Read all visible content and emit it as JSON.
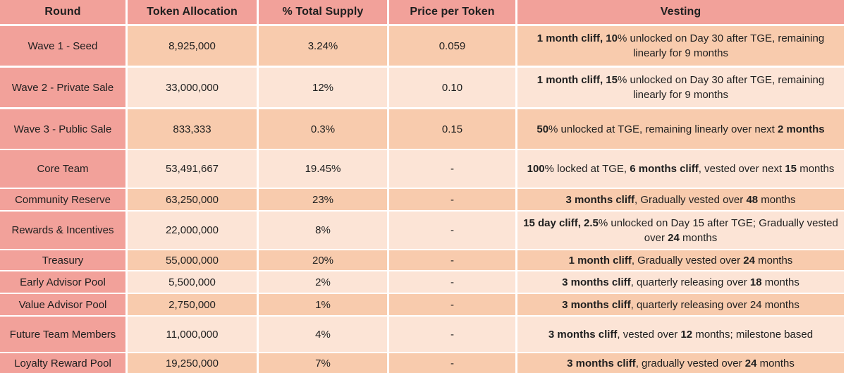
{
  "colors": {
    "header_and_round_column": "#F2A19A",
    "row_band_dark": "#F8CBAD",
    "row_band_light": "#FCE4D6",
    "grid_lines": "#FFFFFF",
    "text": "#1F1F1F"
  },
  "chart_data": {
    "type": "table",
    "columns": [
      "Round",
      "Token Allocation",
      "% Total Supply",
      "Price per Token",
      "Vesting"
    ],
    "rows": [
      {
        "round": "Wave 1 - Seed",
        "token_allocation": "8,925,000",
        "pct_total_supply": "3.24%",
        "price_per_token": "0.059",
        "vesting": "1 month cliff, 10% unlocked on Day 30 after TGE, remaining linearly for 9 months",
        "vesting_segments": [
          {
            "text": "1 month cliff, 10",
            "bold": true
          },
          {
            "text": "% unlocked on Day 30 after TGE, remaining linearly for 9 months",
            "bold": false
          }
        ]
      },
      {
        "round": "Wave 2 - Private Sale",
        "token_allocation": "33,000,000",
        "pct_total_supply": "12%",
        "price_per_token": "0.10",
        "vesting": "1 month cliff, 15% unlocked on Day 30 after TGE, remaining linearly for 9 months",
        "vesting_segments": [
          {
            "text": "1 month cliff, 15",
            "bold": true
          },
          {
            "text": "% unlocked on Day 30 after TGE, remaining linearly for 9 months",
            "bold": false
          }
        ]
      },
      {
        "round": "Wave 3 - Public Sale",
        "token_allocation": "833,333",
        "pct_total_supply": "0.3%",
        "price_per_token": "0.15",
        "vesting": "50% unlocked at TGE, remaining linearly over next 2 months",
        "vesting_segments": [
          {
            "text": "50",
            "bold": true
          },
          {
            "text": "% unlocked at TGE, remaining linearly over next ",
            "bold": false
          },
          {
            "text": "2 months",
            "bold": true
          }
        ]
      },
      {
        "round": "Core Team",
        "token_allocation": "53,491,667",
        "pct_total_supply": "19.45%",
        "price_per_token": "-",
        "vesting": "100% locked at TGE, 6 months cliff, vested over next 15 months",
        "vesting_segments": [
          {
            "text": "100",
            "bold": true
          },
          {
            "text": "% locked at TGE, ",
            "bold": false
          },
          {
            "text": "6 months cliff",
            "bold": true
          },
          {
            "text": ", vested over next ",
            "bold": false
          },
          {
            "text": "15",
            "bold": true
          },
          {
            "text": " months",
            "bold": false
          }
        ]
      },
      {
        "round": "Community Reserve",
        "token_allocation": "63,250,000",
        "pct_total_supply": "23%",
        "price_per_token": "-",
        "vesting": "3 months cliff, Gradually vested over 48 months",
        "vesting_segments": [
          {
            "text": "3 months cliff",
            "bold": true
          },
          {
            "text": ", Gradually vested over ",
            "bold": false
          },
          {
            "text": "48",
            "bold": true
          },
          {
            "text": " months",
            "bold": false
          }
        ]
      },
      {
        "round": "Rewards & Incentives",
        "token_allocation": "22,000,000",
        "pct_total_supply": "8%",
        "price_per_token": "-",
        "vesting": "15 day cliff, 2.5% unlocked on Day 15 after TGE; Gradually vested over 24 months",
        "vesting_segments": [
          {
            "text": "15 day cliff, 2.5",
            "bold": true
          },
          {
            "text": "% unlocked on Day 15 after TGE; Gradually vested over ",
            "bold": false
          },
          {
            "text": "24",
            "bold": true
          },
          {
            "text": " months",
            "bold": false
          }
        ]
      },
      {
        "round": "Treasury",
        "token_allocation": "55,000,000",
        "pct_total_supply": "20%",
        "price_per_token": "-",
        "vesting": "1 month cliff, Gradually vested over 24 months",
        "vesting_segments": [
          {
            "text": "1 month cliff",
            "bold": true
          },
          {
            "text": ", Gradually vested over ",
            "bold": false
          },
          {
            "text": "24",
            "bold": true
          },
          {
            "text": " months",
            "bold": false
          }
        ]
      },
      {
        "round": "Early Advisor Pool",
        "token_allocation": "5,500,000",
        "pct_total_supply": "2%",
        "price_per_token": "-",
        "vesting": "3 months cliff, quarterly releasing over 18 months",
        "vesting_segments": [
          {
            "text": "3 months cliff",
            "bold": true
          },
          {
            "text": ", quarterly releasing over ",
            "bold": false
          },
          {
            "text": "18",
            "bold": true
          },
          {
            "text": " months",
            "bold": false
          }
        ]
      },
      {
        "round": "Value Advisor Pool",
        "token_allocation": "2,750,000",
        "pct_total_supply": "1%",
        "price_per_token": "-",
        "vesting": "3 months cliff, quarterly releasing over 24 months",
        "vesting_segments": [
          {
            "text": "3 months cliff",
            "bold": true
          },
          {
            "text": ", quarterly releasing over 24 months",
            "bold": false
          }
        ]
      },
      {
        "round": "Future Team Members",
        "token_allocation": "11,000,000",
        "pct_total_supply": "4%",
        "price_per_token": "-",
        "vesting": "3 months cliff, vested over 12 months; milestone based",
        "vesting_segments": [
          {
            "text": "3 months cliff",
            "bold": true
          },
          {
            "text": ", vested over ",
            "bold": false
          },
          {
            "text": "12",
            "bold": true
          },
          {
            "text": " months; milestone based",
            "bold": false
          }
        ]
      },
      {
        "round": "Loyalty Reward Pool",
        "token_allocation": "19,250,000",
        "pct_total_supply": "7%",
        "price_per_token": "-",
        "vesting": "3 months cliff, gradually vested over 24 months",
        "vesting_segments": [
          {
            "text": "3 months cliff",
            "bold": true
          },
          {
            "text": ", gradually vested over ",
            "bold": false
          },
          {
            "text": "24",
            "bold": true
          },
          {
            "text": " months",
            "bold": false
          }
        ]
      }
    ]
  }
}
